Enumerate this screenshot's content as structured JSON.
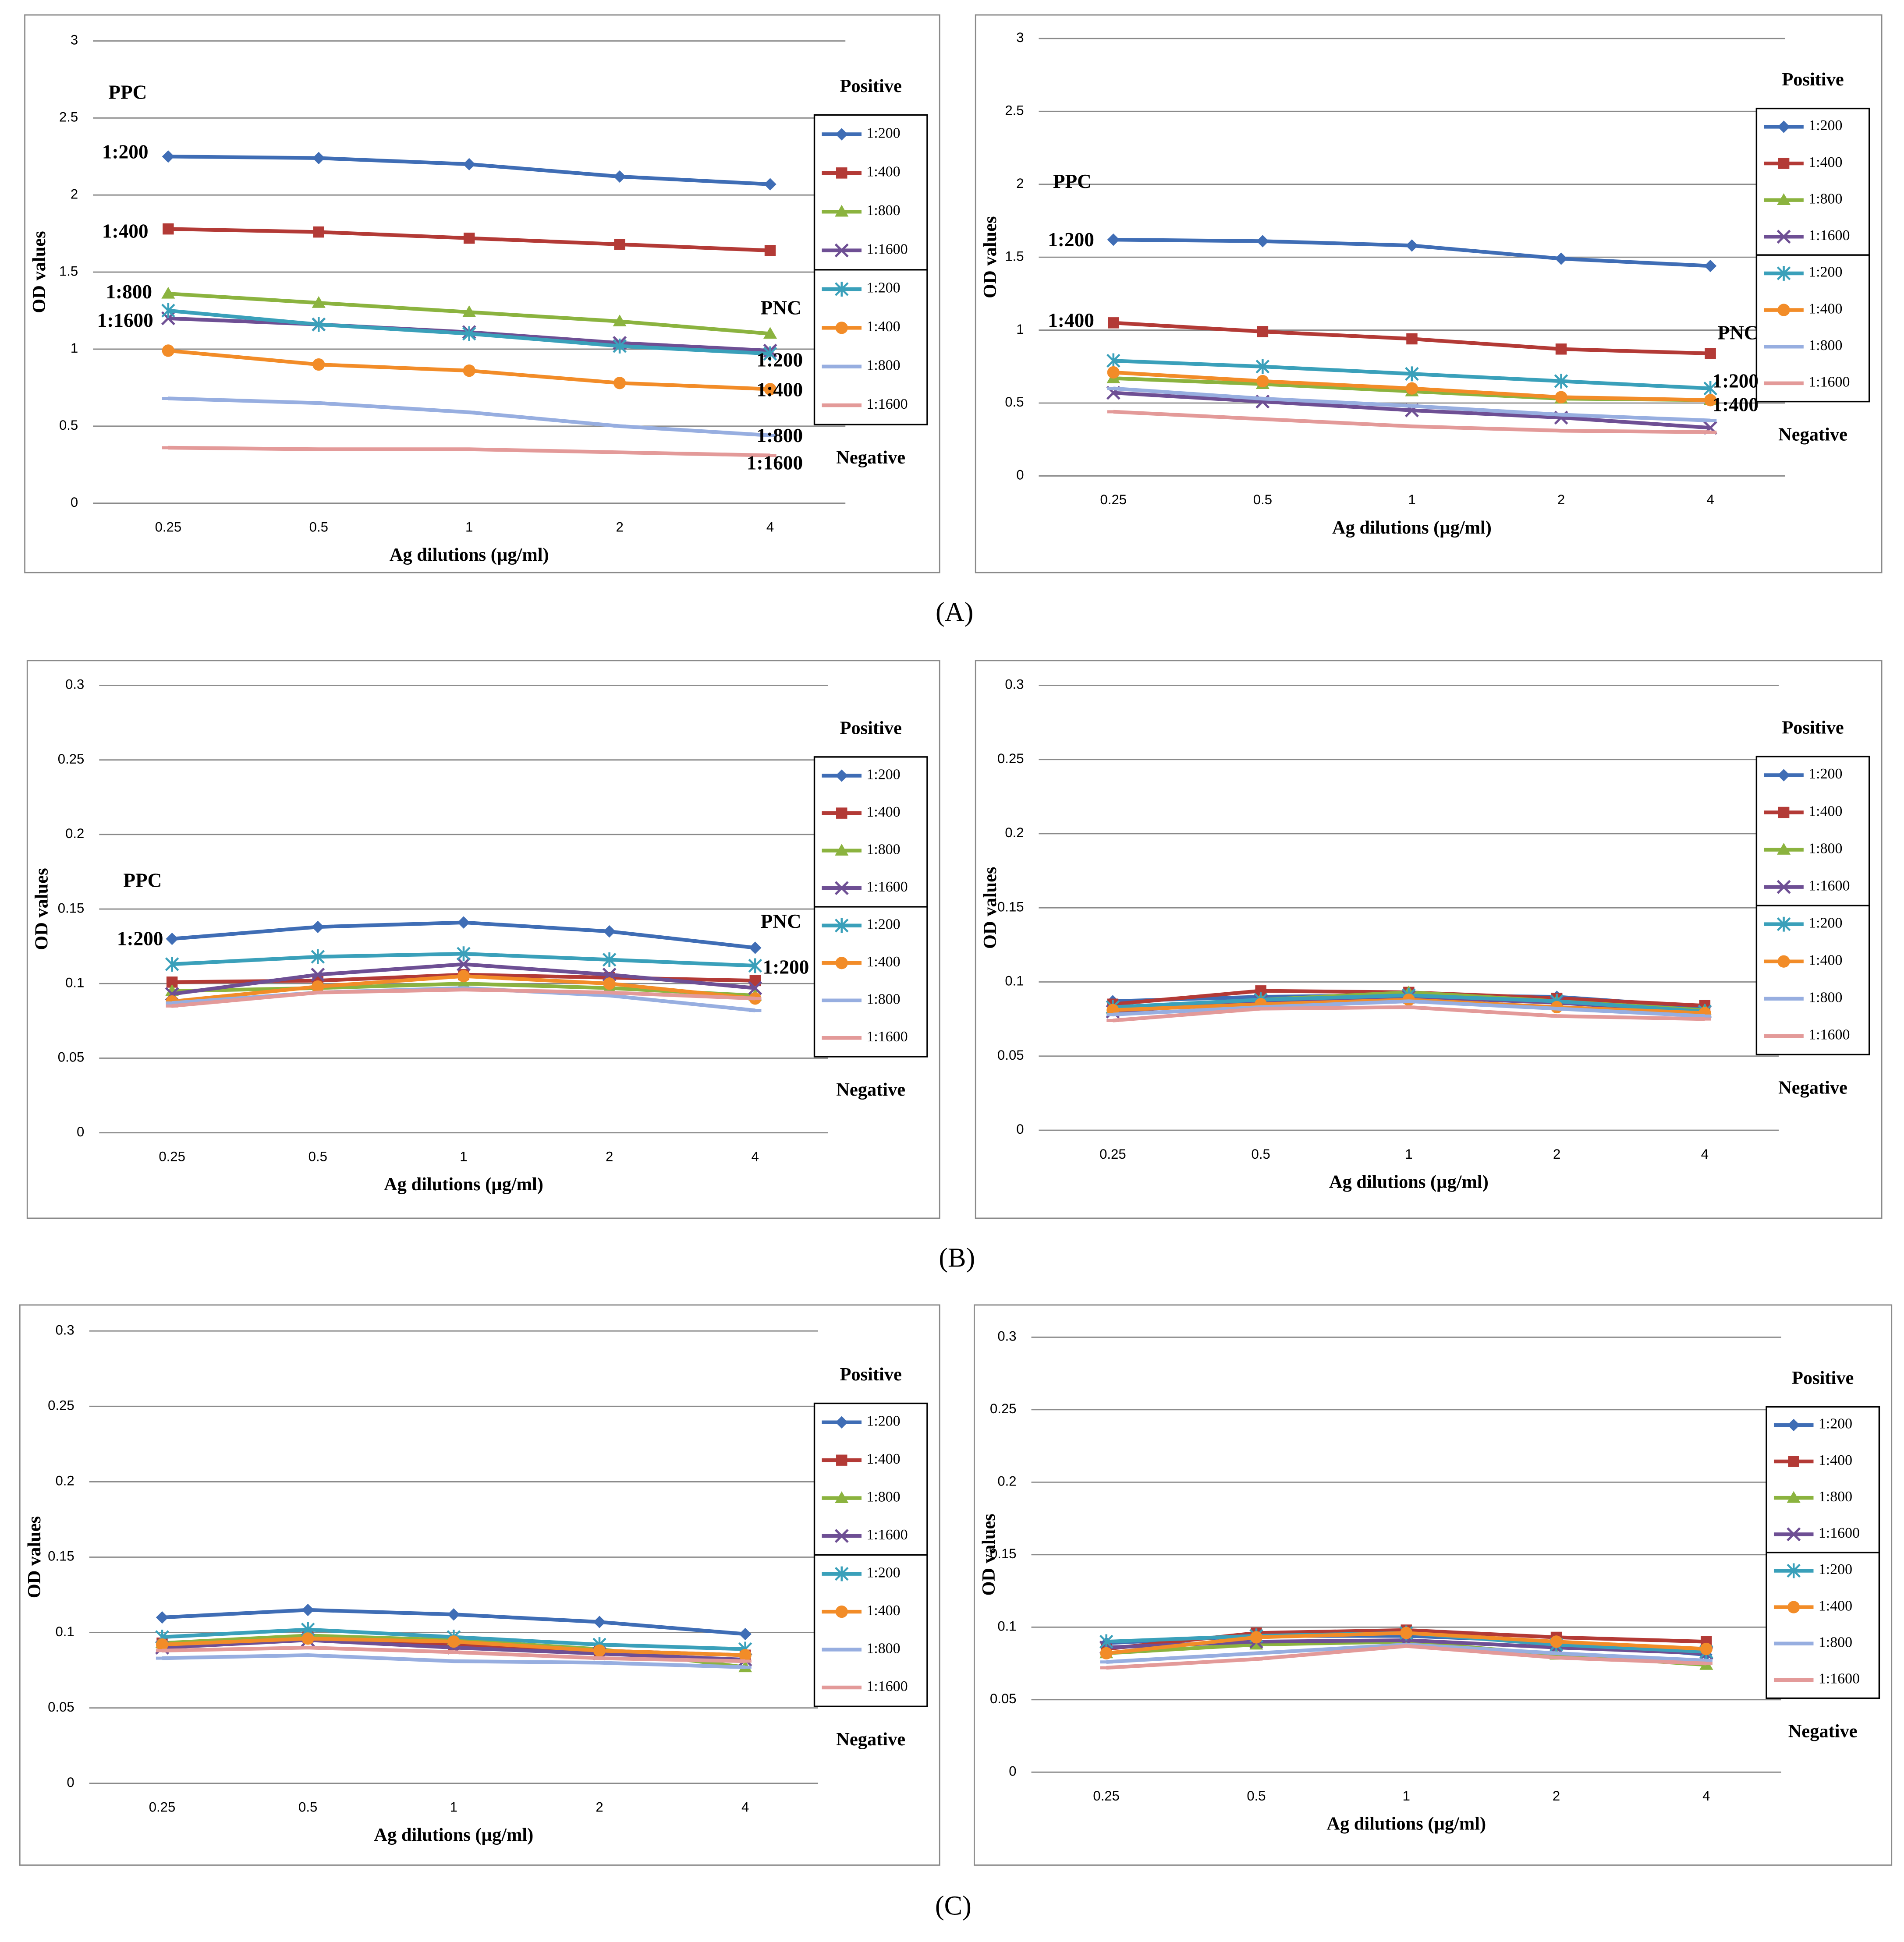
{
  "panel_labels": [
    "(A)",
    "(B)",
    "(C)"
  ],
  "chart_data": [
    {
      "type": "line",
      "xlabel": "Ag dilutions (µg/ml)",
      "ylabel": "OD values",
      "categories": [
        "0.25",
        "0.5",
        "1",
        "2",
        "4"
      ],
      "ylim": [
        0,
        3
      ],
      "yticks": [
        0,
        0.5,
        1,
        1.5,
        2,
        2.5,
        3
      ],
      "grid": true,
      "legend_groups": [
        "Positive",
        "Negative"
      ],
      "annotations": [
        "PPC",
        "1:200",
        "1:400",
        "1:800",
        "1:1600",
        "PNC",
        "1:200",
        "1:400",
        "1:800",
        "1:1600"
      ],
      "series": [
        {
          "name": "1:200",
          "color": "#3f6db5",
          "marker": "diamond",
          "values": [
            2.25,
            2.24,
            2.2,
            2.12,
            2.07
          ]
        },
        {
          "name": "1:400",
          "color": "#b33a36",
          "marker": "square",
          "values": [
            1.78,
            1.76,
            1.72,
            1.68,
            1.64
          ]
        },
        {
          "name": "1:800",
          "color": "#8bb33f",
          "marker": "triangle",
          "values": [
            1.36,
            1.3,
            1.24,
            1.18,
            1.1
          ]
        },
        {
          "name": "1:1600",
          "color": "#6e4f94",
          "marker": "x",
          "values": [
            1.2,
            1.16,
            1.11,
            1.04,
            0.99
          ]
        },
        {
          "name": "1:200",
          "color": "#3aa0ba",
          "marker": "star",
          "values": [
            1.25,
            1.16,
            1.1,
            1.02,
            0.97
          ]
        },
        {
          "name": "1:400",
          "color": "#f28c28",
          "marker": "circle",
          "values": [
            0.99,
            0.9,
            0.86,
            0.78,
            0.74
          ]
        },
        {
          "name": "1:800",
          "color": "#97aee0",
          "marker": "dash",
          "values": [
            0.68,
            0.65,
            0.59,
            0.5,
            0.44
          ]
        },
        {
          "name": "1:1600",
          "color": "#e39a99",
          "marker": "dash",
          "values": [
            0.36,
            0.35,
            0.35,
            0.33,
            0.31
          ]
        }
      ]
    },
    {
      "type": "line",
      "xlabel": "Ag dilutions (µg/ml)",
      "ylabel": "OD values",
      "categories": [
        "0.25",
        "0.5",
        "1",
        "2",
        "4"
      ],
      "ylim": [
        0,
        3
      ],
      "yticks": [
        0,
        0.5,
        1,
        1.5,
        2,
        2.5,
        3
      ],
      "grid": true,
      "legend_groups": [
        "Positive",
        "Negative"
      ],
      "annotations": [
        "PPC",
        "1:200",
        "1:400",
        "PNC",
        "1:200",
        "1:400"
      ],
      "series": [
        {
          "name": "1:200",
          "color": "#3f6db5",
          "marker": "diamond",
          "values": [
            1.62,
            1.61,
            1.58,
            1.49,
            1.44
          ]
        },
        {
          "name": "1:400",
          "color": "#b33a36",
          "marker": "square",
          "values": [
            1.05,
            0.99,
            0.94,
            0.87,
            0.84
          ]
        },
        {
          "name": "1:800",
          "color": "#8bb33f",
          "marker": "triangle",
          "values": [
            0.67,
            0.63,
            0.58,
            0.53,
            0.52
          ]
        },
        {
          "name": "1:1600",
          "color": "#6e4f94",
          "marker": "x",
          "values": [
            0.57,
            0.51,
            0.45,
            0.4,
            0.33
          ]
        },
        {
          "name": "1:200",
          "color": "#3aa0ba",
          "marker": "star",
          "values": [
            0.79,
            0.75,
            0.7,
            0.65,
            0.6
          ]
        },
        {
          "name": "1:400",
          "color": "#f28c28",
          "marker": "circle",
          "values": [
            0.71,
            0.65,
            0.6,
            0.54,
            0.52
          ]
        },
        {
          "name": "1:800",
          "color": "#97aee0",
          "marker": "dash",
          "values": [
            0.6,
            0.53,
            0.48,
            0.42,
            0.38
          ]
        },
        {
          "name": "1:1600",
          "color": "#e39a99",
          "marker": "dash",
          "values": [
            0.44,
            0.39,
            0.34,
            0.31,
            0.3
          ]
        }
      ]
    },
    {
      "type": "line",
      "xlabel": "Ag dilutions (µg/ml)",
      "ylabel": "OD values",
      "categories": [
        "0.25",
        "0.5",
        "1",
        "2",
        "4"
      ],
      "ylim": [
        0,
        0.3
      ],
      "yticks": [
        0,
        0.05,
        0.1,
        0.15,
        0.2,
        0.25,
        0.3
      ],
      "grid": true,
      "legend_groups": [
        "Positive",
        "Negative"
      ],
      "annotations": [
        "PPC",
        "1:200",
        "PNC",
        "1:200"
      ],
      "series": [
        {
          "name": "1:200",
          "color": "#3f6db5",
          "marker": "diamond",
          "values": [
            0.13,
            0.138,
            0.141,
            0.135,
            0.124
          ]
        },
        {
          "name": "1:400",
          "color": "#b33a36",
          "marker": "square",
          "values": [
            0.101,
            0.102,
            0.106,
            0.104,
            0.102
          ]
        },
        {
          "name": "1:800",
          "color": "#8bb33f",
          "marker": "triangle",
          "values": [
            0.095,
            0.097,
            0.1,
            0.097,
            0.092
          ]
        },
        {
          "name": "1:1600",
          "color": "#6e4f94",
          "marker": "x",
          "values": [
            0.093,
            0.106,
            0.113,
            0.106,
            0.097
          ]
        },
        {
          "name": "1:200",
          "color": "#3aa0ba",
          "marker": "star",
          "values": [
            0.113,
            0.118,
            0.12,
            0.116,
            0.112
          ]
        },
        {
          "name": "1:400",
          "color": "#f28c28",
          "marker": "circle",
          "values": [
            0.088,
            0.098,
            0.105,
            0.1,
            0.09
          ]
        },
        {
          "name": "1:800",
          "color": "#97aee0",
          "marker": "dash",
          "values": [
            0.087,
            0.094,
            0.097,
            0.092,
            0.082
          ]
        },
        {
          "name": "1:1600",
          "color": "#e39a99",
          "marker": "dash",
          "values": [
            0.085,
            0.094,
            0.096,
            0.094,
            0.09
          ]
        }
      ]
    },
    {
      "type": "line",
      "xlabel": "Ag dilutions (µg/ml)",
      "ylabel": "OD values",
      "categories": [
        "0.25",
        "0.5",
        "1",
        "2",
        "4"
      ],
      "ylim": [
        0,
        0.3
      ],
      "yticks": [
        0,
        0.05,
        0.1,
        0.15,
        0.2,
        0.25,
        0.3
      ],
      "grid": true,
      "legend_groups": [
        "Positive",
        "Negative"
      ],
      "annotations": [],
      "series": [
        {
          "name": "1:200",
          "color": "#3f6db5",
          "marker": "diamond",
          "values": [
            0.087,
            0.09,
            0.091,
            0.09,
            0.083
          ]
        },
        {
          "name": "1:400",
          "color": "#b33a36",
          "marker": "square",
          "values": [
            0.085,
            0.094,
            0.093,
            0.089,
            0.084
          ]
        },
        {
          "name": "1:800",
          "color": "#8bb33f",
          "marker": "triangle",
          "values": [
            0.082,
            0.088,
            0.093,
            0.087,
            0.081
          ]
        },
        {
          "name": "1:1600",
          "color": "#6e4f94",
          "marker": "x",
          "values": [
            0.08,
            0.087,
            0.09,
            0.086,
            0.08
          ]
        },
        {
          "name": "1:200",
          "color": "#3aa0ba",
          "marker": "star",
          "values": [
            0.083,
            0.088,
            0.091,
            0.087,
            0.08
          ]
        },
        {
          "name": "1:400",
          "color": "#f28c28",
          "marker": "circle",
          "values": [
            0.081,
            0.085,
            0.088,
            0.083,
            0.079
          ]
        },
        {
          "name": "1:800",
          "color": "#97aee0",
          "marker": "dash",
          "values": [
            0.078,
            0.083,
            0.087,
            0.082,
            0.077
          ]
        },
        {
          "name": "1:1600",
          "color": "#e39a99",
          "marker": "dash",
          "values": [
            0.074,
            0.082,
            0.083,
            0.077,
            0.075
          ]
        }
      ]
    },
    {
      "type": "line",
      "xlabel": "Ag dilutions (µg/ml)",
      "ylabel": "OD values",
      "categories": [
        "0.25",
        "0.5",
        "1",
        "2",
        "4"
      ],
      "ylim": [
        0,
        0.3
      ],
      "yticks": [
        0,
        0.05,
        0.1,
        0.15,
        0.2,
        0.25,
        0.3
      ],
      "grid": true,
      "legend_groups": [
        "Positive",
        "Negative"
      ],
      "annotations": [],
      "series": [
        {
          "name": "1:200",
          "color": "#3f6db5",
          "marker": "diamond",
          "values": [
            0.11,
            0.115,
            0.112,
            0.107,
            0.099
          ]
        },
        {
          "name": "1:400",
          "color": "#b33a36",
          "marker": "square",
          "values": [
            0.093,
            0.097,
            0.092,
            0.088,
            0.085
          ]
        },
        {
          "name": "1:800",
          "color": "#8bb33f",
          "marker": "triangle",
          "values": [
            0.093,
            0.098,
            0.095,
            0.089,
            0.077
          ]
        },
        {
          "name": "1:1600",
          "color": "#6e4f94",
          "marker": "x",
          "values": [
            0.09,
            0.095,
            0.09,
            0.086,
            0.082
          ]
        },
        {
          "name": "1:200",
          "color": "#3aa0ba",
          "marker": "star",
          "values": [
            0.097,
            0.102,
            0.097,
            0.092,
            0.089
          ]
        },
        {
          "name": "1:400",
          "color": "#f28c28",
          "marker": "circle",
          "values": [
            0.092,
            0.096,
            0.094,
            0.088,
            0.085
          ]
        },
        {
          "name": "1:800",
          "color": "#97aee0",
          "marker": "dash",
          "values": [
            0.083,
            0.085,
            0.081,
            0.08,
            0.077
          ]
        },
        {
          "name": "1:1600",
          "color": "#e39a99",
          "marker": "dash",
          "values": [
            0.088,
            0.09,
            0.087,
            0.083,
            0.081
          ]
        }
      ]
    },
    {
      "type": "line",
      "xlabel": "Ag dilutions (µg/ml)",
      "ylabel": "OD values",
      "categories": [
        "0.25",
        "0.5",
        "1",
        "2",
        "4"
      ],
      "ylim": [
        0,
        0.3
      ],
      "yticks": [
        0,
        0.05,
        0.1,
        0.15,
        0.2,
        0.25,
        0.3
      ],
      "grid": true,
      "legend_groups": [
        "Positive",
        "Negative"
      ],
      "annotations": [],
      "series": [
        {
          "name": "1:200",
          "color": "#3f6db5",
          "marker": "diamond",
          "values": [
            0.089,
            0.094,
            0.094,
            0.09,
            0.081
          ]
        },
        {
          "name": "1:400",
          "color": "#b33a36",
          "marker": "square",
          "values": [
            0.085,
            0.096,
            0.098,
            0.093,
            0.09
          ]
        },
        {
          "name": "1:800",
          "color": "#8bb33f",
          "marker": "triangle",
          "values": [
            0.082,
            0.088,
            0.09,
            0.081,
            0.074
          ]
        },
        {
          "name": "1:1600",
          "color": "#6e4f94",
          "marker": "x",
          "values": [
            0.086,
            0.09,
            0.091,
            0.086,
            0.082
          ]
        },
        {
          "name": "1:200",
          "color": "#3aa0ba",
          "marker": "star",
          "values": [
            0.09,
            0.094,
            0.096,
            0.088,
            0.083
          ]
        },
        {
          "name": "1:400",
          "color": "#f28c28",
          "marker": "circle",
          "values": [
            0.082,
            0.093,
            0.096,
            0.09,
            0.085
          ]
        },
        {
          "name": "1:800",
          "color": "#97aee0",
          "marker": "dash",
          "values": [
            0.076,
            0.082,
            0.088,
            0.082,
            0.077
          ]
        },
        {
          "name": "1:1600",
          "color": "#e39a99",
          "marker": "dash",
          "values": [
            0.072,
            0.078,
            0.087,
            0.079,
            0.075
          ]
        }
      ]
    }
  ]
}
